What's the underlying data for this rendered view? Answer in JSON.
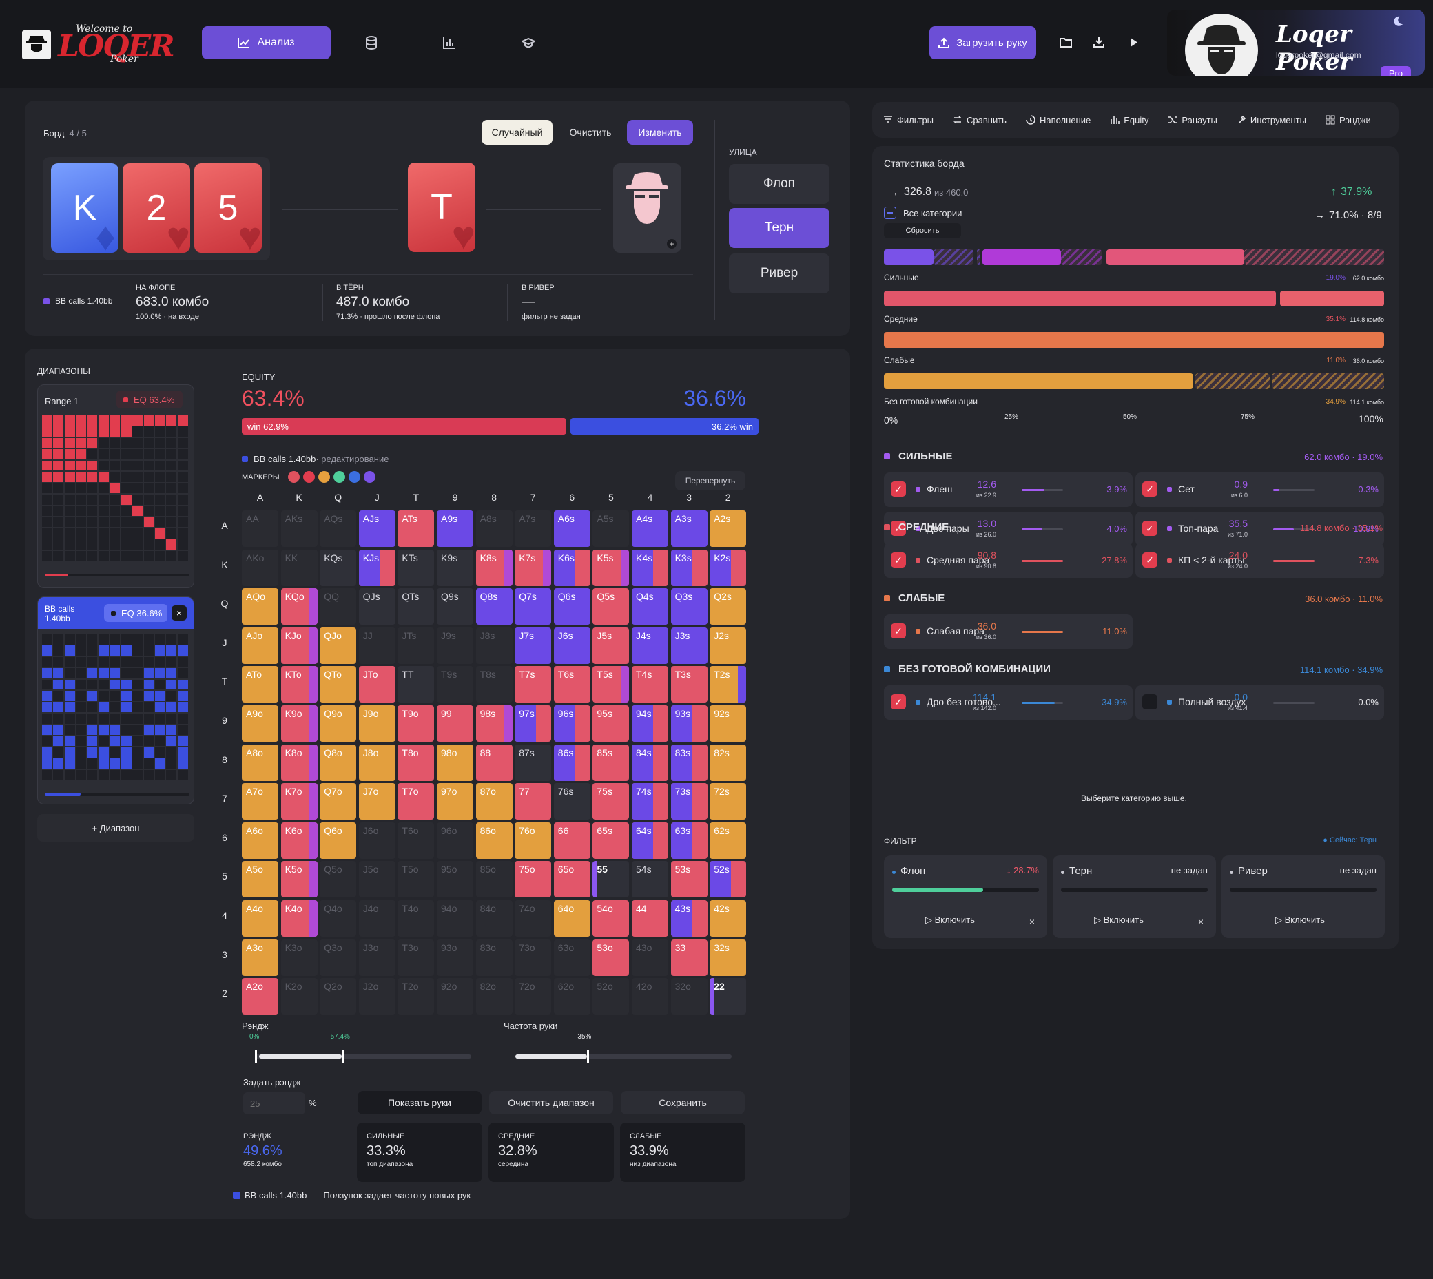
{
  "colors": {
    "accent": "#6c4fd6",
    "red": "#e0525e",
    "blue": "#3b4fe0",
    "orange": "#e7a03e",
    "pink": "#e4576f",
    "green": "#4fcf9b",
    "purple": "#7a52e8"
  },
  "header": {
    "logo_text": "LOQER",
    "logo_script": "Welcome to",
    "logo_sub": "Poker",
    "nav": [
      {
        "label": "Анализ",
        "icon": "chart-line-icon"
      },
      {
        "label": "",
        "icon": "database-icon"
      },
      {
        "label": "",
        "icon": "bar-chart-icon"
      },
      {
        "label": "",
        "icon": "graduation-cap-icon"
      }
    ],
    "upload_label": "Загрузить руку",
    "profile": {
      "name": "Loqer Poker",
      "email": "loqerpoker@gmail.com",
      "badge": "Pro"
    }
  },
  "board": {
    "label": "Борд",
    "count": "4 / 5",
    "random_label": "Случайный",
    "clear_label": "Очистить",
    "edit_label": "Изменить",
    "cards": [
      {
        "rank": "K",
        "suit": "♦",
        "color": "blue"
      },
      {
        "rank": "2",
        "suit": "♥",
        "color": "red"
      },
      {
        "rank": "5",
        "suit": "♥",
        "color": "red"
      },
      {
        "rank": "T",
        "suit": "♥",
        "color": "red"
      }
    ],
    "street_label": "УЛИЦА",
    "streets": [
      "Флоп",
      "Терн",
      "Ривер"
    ],
    "active_street": "Терн",
    "legend": "BB calls 1.40bb",
    "flop": {
      "title": "НА ФЛОПЕ",
      "value": "683.0 комбо",
      "sub": "100.0% · на входе"
    },
    "turn": {
      "title": "В ТЁРН",
      "value": "487.0 комбо",
      "sub": "71.3% · прошло после флопа"
    },
    "river": {
      "title": "В РИВЕР",
      "value": "—",
      "sub": "фильтр не задан"
    }
  },
  "ranges": {
    "title": "ДИАПАЗОНЫ",
    "range1": {
      "name": "Range 1",
      "eq": "EQ 63.4%"
    },
    "range2": {
      "name": "BB calls 1.40bb",
      "eq": "EQ 36.6%",
      "close": "×"
    },
    "add_label": "+ Диапазон"
  },
  "equity": {
    "label": "EQUITY",
    "left": "63.4%",
    "right": "36.6%",
    "win_left": "win 62.9%",
    "win_right": "36.2% win",
    "win_left_value": 62.9,
    "win_right_value": 36.2,
    "editing": "BB calls 1.40bb",
    "editing_suffix": " · редактирование",
    "markers_label": "МАРКЕРЫ",
    "markers": [
      "#e0525e",
      "#e23d4e",
      "#e7a03e",
      "#4fcf9b",
      "#3b6fe0",
      "#7a52e8"
    ],
    "flip_label": "Перевернуть"
  },
  "matrix": {
    "ranks": [
      "A",
      "K",
      "Q",
      "J",
      "T",
      "9",
      "8",
      "7",
      "6",
      "5",
      "4",
      "3",
      "2"
    ],
    "rows": [
      [
        "AA:g",
        "AKs:g",
        "AQs:g",
        "AJs:P",
        "ATs:R",
        "A9s:P",
        "A8s:g",
        "A7s:g",
        "A6s:P",
        "A5s:g",
        "A4s:P",
        "A3s:P",
        "A2s:O"
      ],
      [
        "AKo:g",
        "KK:g",
        "KQs:d",
        "KJs:PR",
        "KTs:d",
        "K9s:d",
        "K8s:RP",
        "K7s:RP",
        "K6s:PR",
        "K5s:RP",
        "K4s:PR",
        "K3s:PR",
        "K2s:PR"
      ],
      [
        "AQo:O",
        "KQo:RP",
        "QQ:g",
        "QJs:d",
        "QTs:d",
        "Q9s:d",
        "Q8s:P",
        "Q7s:P",
        "Q6s:P",
        "Q5s:R",
        "Q4s:P",
        "Q3s:P",
        "Q2s:O"
      ],
      [
        "AJo:O",
        "KJo:RP",
        "QJo:O",
        "JJ:g",
        "JTs:g",
        "J9s:g",
        "J8s:g",
        "J7s:P",
        "J6s:P",
        "J5s:R",
        "J4s:P",
        "J3s:P",
        "J2s:O"
      ],
      [
        "ATo:O",
        "KTo:RP",
        "QTo:O",
        "JTo:R",
        "TT:d",
        "T9s:g",
        "T8s:g",
        "T7s:R",
        "T6s:R",
        "T5s:RP",
        "T4s:R",
        "T3s:R",
        "T2s:OP"
      ],
      [
        "A9o:O",
        "K9o:RP",
        "Q9o:O",
        "J9o:O",
        "T9o:R",
        "99:R",
        "98s:RP",
        "97s:PR",
        "96s:PR",
        "95s:R",
        "94s:PR",
        "93s:PR",
        "92s:O"
      ],
      [
        "A8o:O",
        "K8o:RP",
        "Q8o:O",
        "J8o:O",
        "T8o:R",
        "98o:O",
        "88:R",
        "87s:d",
        "86s:PR",
        "85s:R",
        "84s:PR",
        "83s:PR",
        "82s:O"
      ],
      [
        "A7o:O",
        "K7o:RP",
        "Q7o:O",
        "J7o:O",
        "T7o:R",
        "97o:O",
        "87o:O",
        "77:R",
        "76s:d",
        "75s:R",
        "74s:PR",
        "73s:PR",
        "72s:O"
      ],
      [
        "A6o:O",
        "K6o:RP",
        "Q6o:O",
        "J6o:g",
        "T6o:g",
        "96o:g",
        "86o:O",
        "76o:O",
        "66:R",
        "65s:R",
        "64s:PR",
        "63s:PR",
        "62s:O"
      ],
      [
        "A5o:O",
        "K5o:RP",
        "Q5o:g",
        "J5o:g",
        "T5o:g",
        "95o:g",
        "85o:g",
        "75o:R",
        "65o:R",
        "55:PD",
        "54s:d",
        "53s:R",
        "52s:PR"
      ],
      [
        "A4o:O",
        "K4o:RP",
        "Q4o:g",
        "J4o:g",
        "T4o:g",
        "94o:g",
        "84o:g",
        "74o:g",
        "64o:O",
        "54o:R",
        "44:R",
        "43s:PR",
        "42s:O"
      ],
      [
        "A3o:O",
        "K3o:g",
        "Q3o:g",
        "J3o:g",
        "T3o:g",
        "93o:g",
        "83o:g",
        "73o:g",
        "63o:g",
        "53o:R",
        "43o:g",
        "33:R",
        "32s:O"
      ],
      [
        "A2o:R",
        "K2o:g",
        "Q2o:g",
        "J2o:g",
        "T2o:g",
        "92o:g",
        "82o:g",
        "72o:g",
        "62o:g",
        "52o:g",
        "42o:g",
        "32o:g",
        "22:PD"
      ]
    ]
  },
  "sliders": {
    "range_label": "Рэндж",
    "range_min": "0%",
    "range_val": "57.4%",
    "range_value": 57.4,
    "freq_label": "Частота руки",
    "freq_val": "35%",
    "freq_value": 35
  },
  "set_range": {
    "label": "Задать рэндж",
    "placeholder": "25",
    "unit": "%",
    "show": "Показать руки",
    "clear": "Очистить диапазон",
    "save": "Сохранить"
  },
  "summary": {
    "range": {
      "title": "РЭНДЖ",
      "value": "49.6%",
      "sub": "658.2 комбо"
    },
    "strong": {
      "title": "СИЛЬНЫЕ",
      "value": "33.3%",
      "sub": "топ диапазона"
    },
    "medium": {
      "title": "СРЕДНИЕ",
      "value": "32.8%",
      "sub": "середина"
    },
    "weak": {
      "title": "СЛАБЫЕ",
      "value": "33.9%",
      "sub": "низ диапазона"
    },
    "footer_legend": "BB calls 1.40bb",
    "footer_note": "Ползунок задает частоту новых рук"
  },
  "right_tabs": [
    {
      "label": "Фильтры",
      "icon": "filter-icon"
    },
    {
      "label": "Сравнить",
      "icon": "compare-icon"
    },
    {
      "label": "Наполнение",
      "icon": "history-icon"
    },
    {
      "label": "Equity",
      "icon": "equity-bars-icon"
    },
    {
      "label": "Ранауты",
      "icon": "shuffle-icon"
    },
    {
      "label": "Инструменты",
      "icon": "tools-icon"
    },
    {
      "label": "Рэнджи",
      "icon": "grid-icon"
    }
  ],
  "board_stats": {
    "title": "Статистика борда",
    "combos": "326.8",
    "combos_of": "из 460.0",
    "pct": "37.9%",
    "all_cats": "Все категории",
    "reset": "Сбросить",
    "ratio": "71.0% · 8/9",
    "bars": [
      {
        "label": "Сильные",
        "pct": "19.0%",
        "combos": "62.0 комбо",
        "color": "#7a52e8"
      },
      {
        "label": "Средние",
        "pct": "35.1%",
        "combos": "114.8 комбо",
        "color": "#e0525e"
      },
      {
        "label": "Слабые",
        "pct": "11.0%",
        "combos": "36.0 комбо",
        "color": "#e6774b"
      },
      {
        "label": "Без готовой комбинации",
        "pct": "34.9%",
        "combos": "114.1 комбо",
        "color": "#e7a03e"
      }
    ],
    "axis": [
      "0%",
      "25%",
      "50%",
      "75%",
      "100%"
    ]
  },
  "categories": [
    {
      "title": "СИЛЬНЫЕ",
      "summary": "62.0 комбо · 19.0%",
      "color": "#a35bf0",
      "items": [
        {
          "name": "Флеш",
          "val": "12.6",
          "of": "из 22.9",
          "pct": "3.9%",
          "fill": 0.55,
          "checked": true
        },
        {
          "name": "Сет",
          "val": "0.9",
          "of": "из 6.0",
          "pct": "0.3%",
          "fill": 0.15,
          "checked": true
        },
        {
          "name": "Две пары",
          "val": "13.0",
          "of": "из 26.0",
          "pct": "4.0%",
          "fill": 0.5,
          "checked": true
        },
        {
          "name": "Топ-пара",
          "val": "35.5",
          "of": "из 71.0",
          "pct": "10.9%",
          "fill": 0.5,
          "checked": true
        }
      ]
    },
    {
      "title": "СРЕДНИЕ",
      "summary": "114.8 комбо · 35.1%",
      "color": "#e0525e",
      "items": [
        {
          "name": "Средняя пара",
          "val": "90.8",
          "of": "из 90.8",
          "pct": "27.8%",
          "fill": 1,
          "checked": true
        },
        {
          "name": "КП < 2-й карты",
          "val": "24.0",
          "of": "из 24.0",
          "pct": "7.3%",
          "fill": 1,
          "checked": true
        }
      ]
    },
    {
      "title": "СЛАБЫЕ",
      "summary": "36.0 комбо · 11.0%",
      "color": "#e6774b",
      "items": [
        {
          "name": "Слабая пара",
          "val": "36.0",
          "of": "из 36.0",
          "pct": "11.0%",
          "fill": 1,
          "checked": true
        }
      ]
    },
    {
      "title": "БЕЗ ГОТОВОЙ КОМБИНАЦИИ",
      "summary": "114.1 комбо · 34.9%",
      "color": "#3b88d6",
      "items": [
        {
          "name": "Дро без готово...",
          "val": "114.1",
          "of": "из 142.0",
          "pct": "34.9%",
          "fill": 0.8,
          "checked": true
        },
        {
          "name": "Полный воздух",
          "val": "0.0",
          "of": "из 41.4",
          "pct": "0.0%",
          "fill": 0,
          "checked": false
        }
      ]
    }
  ],
  "choose_hint": "Выберите категорию выше.",
  "filter": {
    "title": "ФИЛЬТР",
    "now": "● Сейчас: Терн",
    "cards": [
      {
        "name": "Флоп",
        "state": "28.7%",
        "action": "Включить",
        "close": "×",
        "fill": 0.62
      },
      {
        "name": "Терн",
        "state": "не задан",
        "action": "Включить",
        "close": "×",
        "fill": 0
      },
      {
        "name": "Ривер",
        "state": "не задан",
        "action": "Включить",
        "close": "",
        "fill": 0
      }
    ]
  }
}
